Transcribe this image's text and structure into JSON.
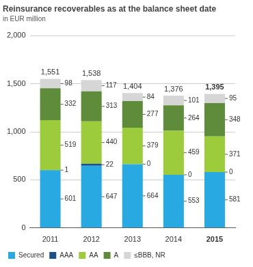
{
  "chart_data": {
    "type": "bar",
    "title": "Reinsurance recoverables as at the balance sheet date",
    "subtitle": "in EUR million",
    "categories": [
      "2011",
      "2012",
      "2013",
      "2014",
      "2015"
    ],
    "series": [
      {
        "name": "Secured",
        "color": "#29a9e1",
        "values": [
          601,
          647,
          664,
          553,
          581
        ]
      },
      {
        "name": "AAA",
        "color": "#1b4f8a",
        "values": [
          1,
          22,
          0,
          0,
          0
        ]
      },
      {
        "name": "AA",
        "color": "#9ccc3c",
        "values": [
          519,
          440,
          379,
          459,
          371
        ]
      },
      {
        "name": "A",
        "color": "#5e8c3a",
        "values": [
          332,
          313,
          277,
          264,
          348
        ]
      },
      {
        "name": "≤BBB, NR",
        "color": "#d6d6d6",
        "values": [
          98,
          117,
          84,
          101,
          95
        ]
      }
    ],
    "totals": [
      1551,
      1538,
      1404,
      1376,
      1395
    ],
    "total_labels": [
      "1,551",
      "1,538",
      "1,404",
      "1,376",
      "1,395"
    ],
    "ylim": [
      0,
      2000
    ],
    "yticks": [
      0,
      500,
      {
        "value": 1000,
        "label": "1,000"
      },
      {
        "value": 1500,
        "label": "1,500"
      },
      {
        "value": 2000,
        "label": "2,000"
      }
    ],
    "stacked": true,
    "grid": true,
    "data_labels": true,
    "legend": "bottom"
  }
}
